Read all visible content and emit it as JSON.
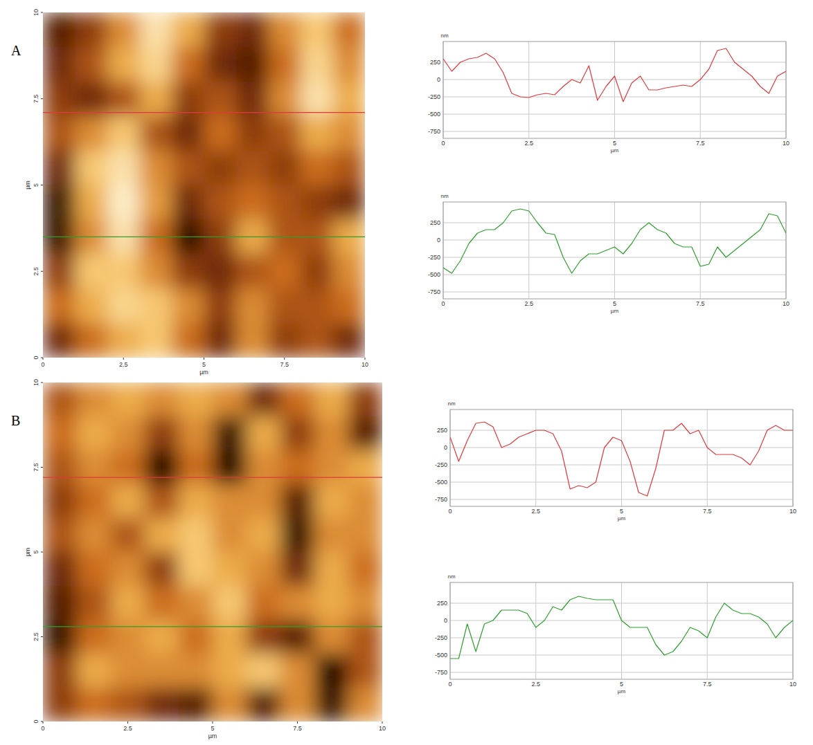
{
  "chart_data": [
    {
      "type": "heatmap",
      "title": "A",
      "xlabel": "µm",
      "ylabel": "µm",
      "xlim": [
        0,
        10
      ],
      "ylim": [
        0,
        10
      ],
      "xticks": [
        0,
        2.5,
        5,
        7.5,
        10
      ],
      "yticks": [
        0,
        2.5,
        5,
        7.5,
        10
      ],
      "zlim": [
        -600,
        500
      ],
      "cells": [
        [
          -400,
          -200,
          100,
          400,
          200,
          -200,
          -300,
          100,
          300,
          0
        ],
        [
          -300,
          -100,
          200,
          350,
          0,
          -300,
          -400,
          0,
          350,
          100
        ],
        [
          -200,
          -300,
          -100,
          200,
          -200,
          -100,
          -300,
          100,
          400,
          200
        ],
        [
          -100,
          100,
          300,
          -100,
          -300,
          0,
          -200,
          -100,
          200,
          100
        ],
        [
          -300,
          300,
          400,
          100,
          -100,
          -200,
          -100,
          -200,
          0,
          -100
        ],
        [
          -500,
          200,
          450,
          150,
          -300,
          -100,
          0,
          -100,
          -200,
          -300
        ],
        [
          -500,
          100,
          400,
          0,
          -550,
          -200,
          200,
          -100,
          -100,
          200
        ],
        [
          -200,
          300,
          300,
          100,
          -200,
          -300,
          -100,
          0,
          -200,
          100
        ],
        [
          0,
          200,
          350,
          300,
          100,
          -200,
          100,
          -100,
          -100,
          0
        ],
        [
          -300,
          0,
          200,
          300,
          0,
          -300,
          100,
          -200,
          -100,
          -300
        ]
      ],
      "profiles": [
        {
          "y": 7.1,
          "color": "#e0383c"
        },
        {
          "y": 3.5,
          "color": "#2ca02c"
        }
      ]
    },
    {
      "type": "line",
      "xlabel": "µm",
      "ylabel": "nm",
      "color": "#e0383c",
      "grid": true,
      "xlim": [
        0,
        10
      ],
      "ylim": [
        -850,
        550
      ],
      "xticks": [
        0,
        2.5,
        5,
        7.5,
        10
      ],
      "yticks": [
        -750,
        -500,
        -250,
        0,
        250
      ],
      "x": [
        0,
        0.25,
        0.5,
        0.75,
        1,
        1.25,
        1.5,
        1.75,
        2,
        2.25,
        2.5,
        2.75,
        3,
        3.25,
        3.5,
        3.75,
        4,
        4.25,
        4.5,
        4.75,
        5,
        5.25,
        5.5,
        5.75,
        6,
        6.25,
        6.5,
        6.75,
        7,
        7.25,
        7.5,
        7.75,
        8,
        8.25,
        8.5,
        8.75,
        9,
        9.25,
        9.5,
        9.75,
        10
      ],
      "values": [
        300,
        120,
        250,
        300,
        320,
        380,
        300,
        100,
        -200,
        -250,
        -260,
        -220,
        -200,
        -220,
        -100,
        0,
        -50,
        200,
        -300,
        -100,
        50,
        -320,
        -50,
        50,
        -150,
        -150,
        -120,
        -100,
        -80,
        -100,
        0,
        150,
        420,
        450,
        250,
        150,
        50,
        -100,
        -200,
        50,
        120
      ]
    },
    {
      "type": "line",
      "xlabel": "µm",
      "ylabel": "nm",
      "color": "#2ca02c",
      "grid": true,
      "xlim": [
        0,
        10
      ],
      "ylim": [
        -850,
        550
      ],
      "xticks": [
        0,
        2.5,
        5,
        7.5,
        10
      ],
      "yticks": [
        -750,
        -500,
        -250,
        0,
        250
      ],
      "x": [
        0,
        0.25,
        0.5,
        0.75,
        1,
        1.25,
        1.5,
        1.75,
        2,
        2.25,
        2.5,
        2.75,
        3,
        3.25,
        3.5,
        3.75,
        4,
        4.25,
        4.5,
        4.75,
        5,
        5.25,
        5.5,
        5.75,
        6,
        6.25,
        6.5,
        6.75,
        7,
        7.25,
        7.5,
        7.75,
        8,
        8.25,
        8.5,
        8.75,
        9,
        9.25,
        9.5,
        9.75,
        10
      ],
      "values": [
        -400,
        -480,
        -300,
        -50,
        100,
        150,
        150,
        250,
        420,
        450,
        420,
        250,
        100,
        80,
        -250,
        -480,
        -300,
        -200,
        -200,
        -150,
        -100,
        -200,
        -50,
        150,
        250,
        150,
        100,
        -50,
        -100,
        -100,
        -380,
        -350,
        -100,
        -250,
        -150,
        -50,
        50,
        150,
        380,
        350,
        100
      ]
    },
    {
      "type": "heatmap",
      "title": "B",
      "xlabel": "µm",
      "ylabel": "µm",
      "xlim": [
        0,
        10
      ],
      "ylim": [
        0,
        10
      ],
      "xticks": [
        0,
        2.5,
        5,
        7.5,
        10
      ],
      "yticks": [
        0,
        2.5,
        5,
        7.5,
        10
      ],
      "zlim": [
        -600,
        500
      ],
      "cells": [
        [
          -100,
          100,
          200,
          100,
          200,
          100,
          -300,
          0,
          200,
          -200
        ],
        [
          0,
          200,
          100,
          -200,
          100,
          -500,
          200,
          -200,
          100,
          -400
        ],
        [
          -100,
          100,
          0,
          -600,
          0,
          -600,
          100,
          0,
          100,
          200
        ],
        [
          -200,
          0,
          200,
          -100,
          200,
          100,
          100,
          -400,
          200,
          100
        ],
        [
          -100,
          100,
          -100,
          200,
          300,
          100,
          200,
          -500,
          100,
          100
        ],
        [
          -300,
          0,
          100,
          -200,
          300,
          200,
          100,
          -300,
          200,
          0
        ],
        [
          -400,
          -100,
          200,
          0,
          100,
          300,
          0,
          100,
          200,
          100
        ],
        [
          -500,
          0,
          100,
          200,
          0,
          200,
          -200,
          -400,
          100,
          -100
        ],
        [
          -200,
          200,
          100,
          100,
          100,
          200,
          300,
          100,
          -600,
          -100
        ],
        [
          -200,
          0,
          -100,
          -300,
          -400,
          100,
          -400,
          100,
          -500,
          100
        ]
      ],
      "profiles": [
        {
          "y": 7.2,
          "color": "#e0383c"
        },
        {
          "y": 2.8,
          "color": "#2ca02c"
        }
      ]
    },
    {
      "type": "line",
      "xlabel": "µm",
      "ylabel": "nm",
      "color": "#e0383c",
      "grid": true,
      "xlim": [
        0,
        10
      ],
      "ylim": [
        -850,
        550
      ],
      "xticks": [
        0,
        2.5,
        5,
        7.5,
        10
      ],
      "yticks": [
        -750,
        -500,
        -250,
        0,
        250
      ],
      "x": [
        0,
        0.25,
        0.5,
        0.75,
        1,
        1.25,
        1.5,
        1.75,
        2,
        2.25,
        2.5,
        2.75,
        3,
        3.25,
        3.5,
        3.75,
        4,
        4.25,
        4.5,
        4.75,
        5,
        5.25,
        5.5,
        5.75,
        6,
        6.25,
        6.5,
        6.75,
        7,
        7.25,
        7.5,
        7.75,
        8,
        8.25,
        8.5,
        8.75,
        9,
        9.25,
        9.5,
        9.75,
        10
      ],
      "values": [
        150,
        -200,
        100,
        350,
        370,
        300,
        0,
        50,
        150,
        200,
        250,
        250,
        200,
        -50,
        -600,
        -550,
        -580,
        -500,
        0,
        150,
        100,
        -200,
        -650,
        -700,
        -300,
        250,
        250,
        350,
        200,
        250,
        0,
        -100,
        -100,
        -100,
        -150,
        -250,
        -50,
        250,
        320,
        250,
        250
      ]
    },
    {
      "type": "line",
      "xlabel": "µm",
      "ylabel": "nm",
      "color": "#2ca02c",
      "grid": true,
      "xlim": [
        0,
        10
      ],
      "ylim": [
        -850,
        550
      ],
      "xticks": [
        0,
        2.5,
        5,
        7.5,
        10
      ],
      "yticks": [
        -750,
        -500,
        -250,
        0,
        250
      ],
      "x": [
        0,
        0.25,
        0.5,
        0.75,
        1,
        1.25,
        1.5,
        1.75,
        2,
        2.25,
        2.5,
        2.75,
        3,
        3.25,
        3.5,
        3.75,
        4,
        4.25,
        4.5,
        4.75,
        5,
        5.25,
        5.5,
        5.75,
        6,
        6.25,
        6.5,
        6.75,
        7,
        7.25,
        7.5,
        7.75,
        8,
        8.25,
        8.5,
        8.75,
        9,
        9.25,
        9.5,
        9.75,
        10
      ],
      "values": [
        -550,
        -550,
        -50,
        -450,
        -50,
        0,
        150,
        150,
        150,
        100,
        -100,
        0,
        200,
        150,
        300,
        350,
        320,
        300,
        300,
        300,
        0,
        -100,
        -100,
        -100,
        -350,
        -500,
        -450,
        -300,
        -100,
        -150,
        -250,
        50,
        250,
        150,
        100,
        100,
        50,
        -50,
        -250,
        -100,
        0
      ]
    }
  ]
}
